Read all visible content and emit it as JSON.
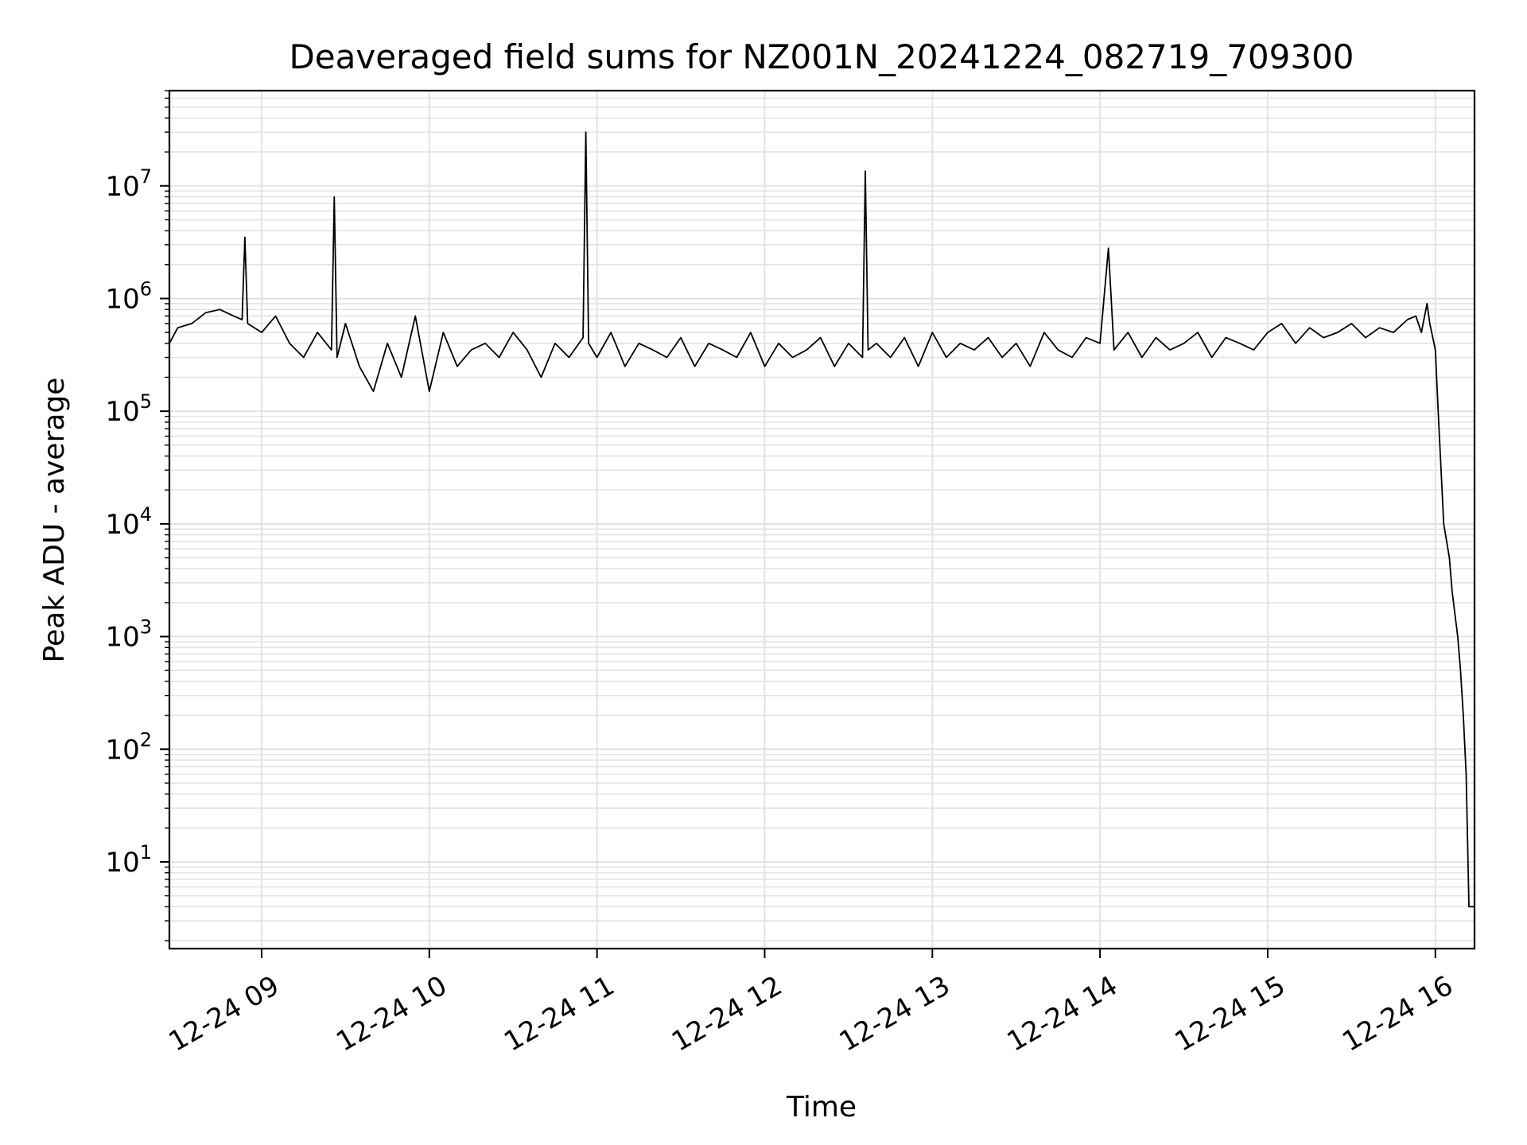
{
  "chart_data": {
    "type": "line",
    "title": "Deaveraged field sums for NZ001N_20241224_082719_709300",
    "xlabel": "Time",
    "ylabel": "Peak ADU - average",
    "y_scale": "log",
    "ylim": [
      1.7,
      70000000
    ],
    "xlim": [
      "2024-12-24 08:27",
      "2024-12-24 16:14"
    ],
    "grid": true,
    "grid_minor": true,
    "x_tick_labels": [
      "12-24 09",
      "12-24 10",
      "12-24 11",
      "12-24 12",
      "12-24 13",
      "12-24 14",
      "12-24 15",
      "12-24 16"
    ],
    "x_ticks": [
      "2024-12-24 09:00",
      "2024-12-24 10:00",
      "2024-12-24 11:00",
      "2024-12-24 12:00",
      "2024-12-24 13:00",
      "2024-12-24 14:00",
      "2024-12-24 15:00",
      "2024-12-24 16:00"
    ],
    "y_ticks": [
      {
        "value": 10,
        "base": "10",
        "exp": "1"
      },
      {
        "value": 100,
        "base": "10",
        "exp": "2"
      },
      {
        "value": 1000,
        "base": "10",
        "exp": "3"
      },
      {
        "value": 10000,
        "base": "10",
        "exp": "4"
      },
      {
        "value": 100000,
        "base": "10",
        "exp": "5"
      },
      {
        "value": 1000000,
        "base": "10",
        "exp": "6"
      },
      {
        "value": 10000000,
        "base": "10",
        "exp": "7"
      }
    ],
    "series": [
      {
        "color": "#000000",
        "x": [
          "2024-12-24 08:27",
          "2024-12-24 08:30",
          "2024-12-24 08:35",
          "2024-12-24 08:40",
          "2024-12-24 08:45",
          "2024-12-24 08:50",
          "2024-12-24 08:53",
          "2024-12-24 08:54",
          "2024-12-24 08:55",
          "2024-12-24 09:00",
          "2024-12-24 09:05",
          "2024-12-24 09:10",
          "2024-12-24 09:15",
          "2024-12-24 09:20",
          "2024-12-24 09:25",
          "2024-12-24 09:26",
          "2024-12-24 09:27",
          "2024-12-24 09:30",
          "2024-12-24 09:35",
          "2024-12-24 09:40",
          "2024-12-24 09:45",
          "2024-12-24 09:50",
          "2024-12-24 09:55",
          "2024-12-24 10:00",
          "2024-12-24 10:05",
          "2024-12-24 10:10",
          "2024-12-24 10:15",
          "2024-12-24 10:20",
          "2024-12-24 10:25",
          "2024-12-24 10:30",
          "2024-12-24 10:35",
          "2024-12-24 10:40",
          "2024-12-24 10:45",
          "2024-12-24 10:50",
          "2024-12-24 10:55",
          "2024-12-24 10:56",
          "2024-12-24 10:57",
          "2024-12-24 11:00",
          "2024-12-24 11:05",
          "2024-12-24 11:10",
          "2024-12-24 11:15",
          "2024-12-24 11:20",
          "2024-12-24 11:25",
          "2024-12-24 11:30",
          "2024-12-24 11:35",
          "2024-12-24 11:40",
          "2024-12-24 11:45",
          "2024-12-24 11:50",
          "2024-12-24 11:55",
          "2024-12-24 12:00",
          "2024-12-24 12:05",
          "2024-12-24 12:10",
          "2024-12-24 12:15",
          "2024-12-24 12:20",
          "2024-12-24 12:25",
          "2024-12-24 12:30",
          "2024-12-24 12:35",
          "2024-12-24 12:36",
          "2024-12-24 12:37",
          "2024-12-24 12:40",
          "2024-12-24 12:45",
          "2024-12-24 12:50",
          "2024-12-24 12:55",
          "2024-12-24 13:00",
          "2024-12-24 13:05",
          "2024-12-24 13:10",
          "2024-12-24 13:15",
          "2024-12-24 13:20",
          "2024-12-24 13:25",
          "2024-12-24 13:30",
          "2024-12-24 13:35",
          "2024-12-24 13:40",
          "2024-12-24 13:45",
          "2024-12-24 13:50",
          "2024-12-24 13:55",
          "2024-12-24 14:00",
          "2024-12-24 14:03",
          "2024-12-24 14:05",
          "2024-12-24 14:10",
          "2024-12-24 14:15",
          "2024-12-24 14:20",
          "2024-12-24 14:25",
          "2024-12-24 14:30",
          "2024-12-24 14:35",
          "2024-12-24 14:40",
          "2024-12-24 14:45",
          "2024-12-24 14:50",
          "2024-12-24 14:55",
          "2024-12-24 15:00",
          "2024-12-24 15:05",
          "2024-12-24 15:10",
          "2024-12-24 15:15",
          "2024-12-24 15:20",
          "2024-12-24 15:25",
          "2024-12-24 15:30",
          "2024-12-24 15:35",
          "2024-12-24 15:40",
          "2024-12-24 15:45",
          "2024-12-24 15:50",
          "2024-12-24 15:53",
          "2024-12-24 15:55",
          "2024-12-24 15:57",
          "2024-12-24 15:58",
          "2024-12-24 16:00",
          "2024-12-24 16:01",
          "2024-12-24 16:03",
          "2024-12-24 16:05",
          "2024-12-24 16:06",
          "2024-12-24 16:08",
          "2024-12-24 16:09",
          "2024-12-24 16:10",
          "2024-12-24 16:11",
          "2024-12-24 16:12",
          "2024-12-24 16:13",
          "2024-12-24 16:14"
        ],
        "y": [
          400000,
          550000,
          600000,
          750000,
          800000,
          700000,
          650000,
          3500000,
          600000,
          500000,
          700000,
          400000,
          300000,
          500000,
          350000,
          8000000,
          300000,
          600000,
          250000,
          150000,
          400000,
          200000,
          700000,
          150000,
          500000,
          250000,
          350000,
          400000,
          300000,
          500000,
          350000,
          200000,
          400000,
          300000,
          450000,
          30000000,
          400000,
          300000,
          500000,
          250000,
          400000,
          350000,
          300000,
          450000,
          250000,
          400000,
          350000,
          300000,
          500000,
          250000,
          400000,
          300000,
          350000,
          450000,
          250000,
          400000,
          300000,
          13500000,
          350000,
          400000,
          300000,
          450000,
          250000,
          500000,
          300000,
          400000,
          350000,
          450000,
          300000,
          400000,
          250000,
          500000,
          350000,
          300000,
          450000,
          400000,
          2800000,
          350000,
          500000,
          300000,
          450000,
          350000,
          400000,
          500000,
          300000,
          450000,
          400000,
          350000,
          500000,
          600000,
          400000,
          550000,
          450000,
          500000,
          600000,
          450000,
          550000,
          500000,
          650000,
          700000,
          500000,
          900000,
          600000,
          350000,
          100000,
          10000,
          5000,
          2500,
          1000,
          500,
          200,
          60,
          4,
          4,
          4
        ]
      }
    ]
  }
}
